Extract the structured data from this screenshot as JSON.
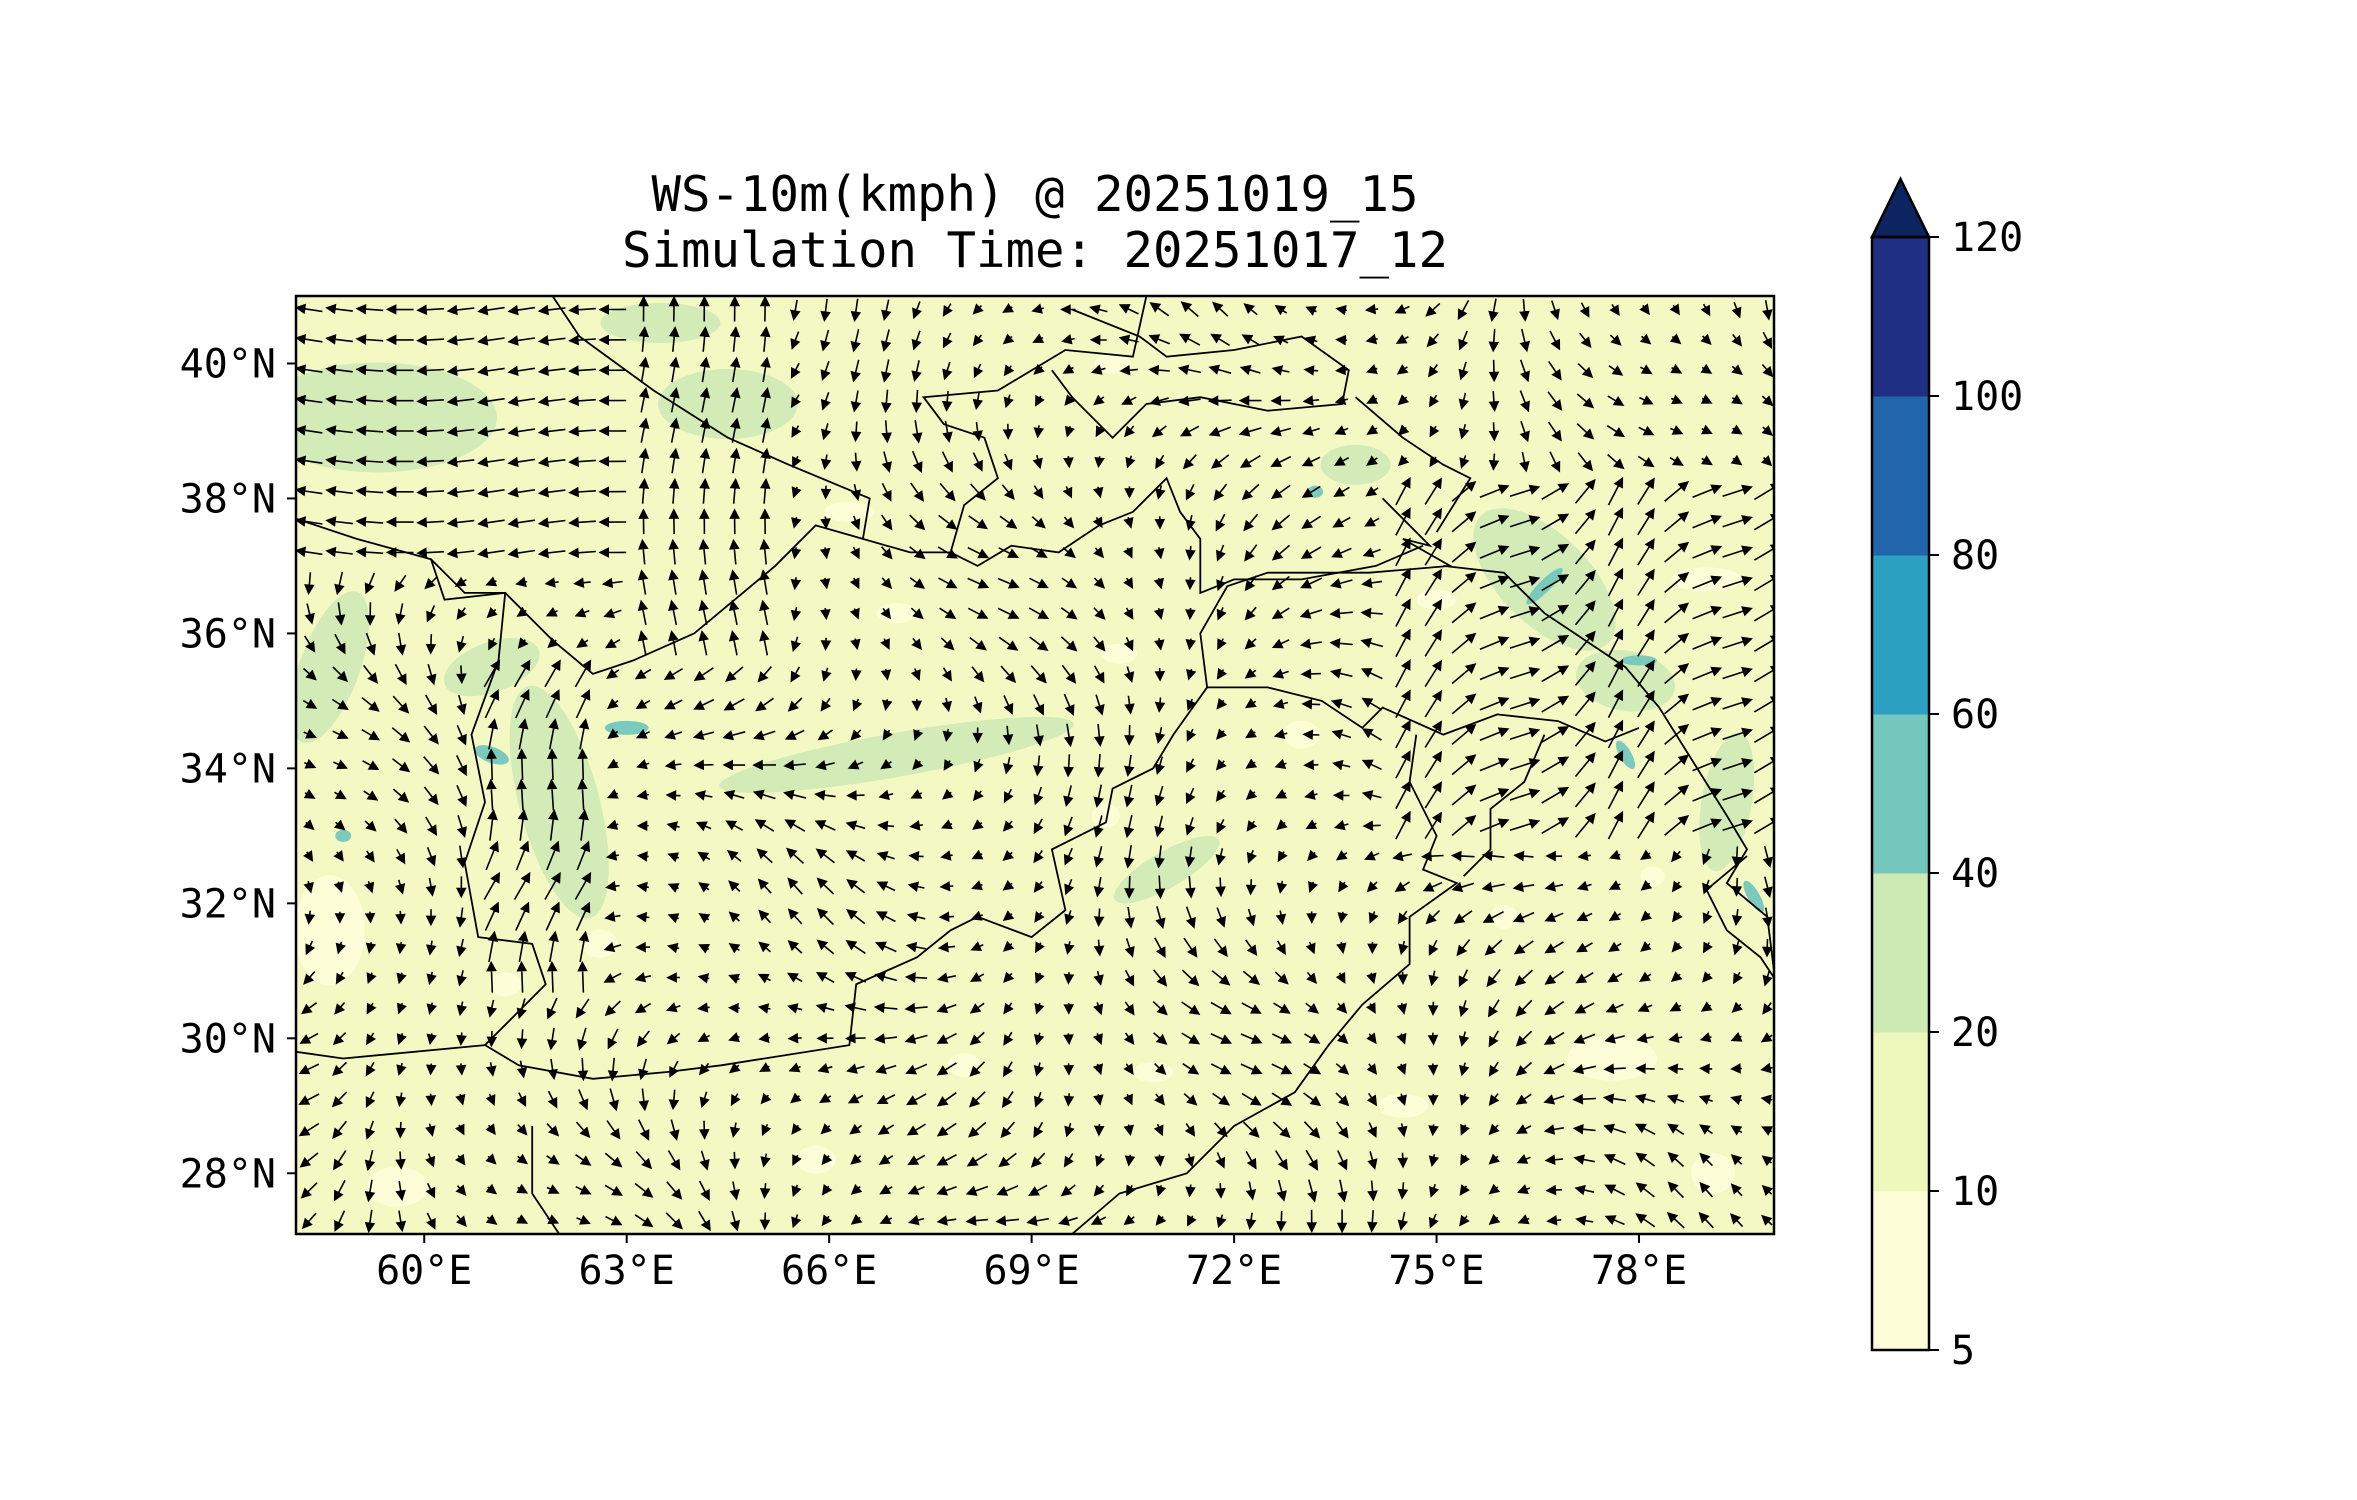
{
  "figure": {
    "title": "WS-10m(kmph) @ 20251019_15",
    "subtitle": "Simulation Time: 20251017_12"
  },
  "map": {
    "lon_range": [
      58.1,
      80.0
    ],
    "lat_range": [
      27.1,
      41.0
    ],
    "lon_ticks": [
      {
        "value": 60,
        "label": "60°E"
      },
      {
        "value": 63,
        "label": "63°E"
      },
      {
        "value": 66,
        "label": "66°E"
      },
      {
        "value": 69,
        "label": "69°E"
      },
      {
        "value": 72,
        "label": "72°E"
      },
      {
        "value": 75,
        "label": "75°E"
      },
      {
        "value": 78,
        "label": "78°E"
      }
    ],
    "lat_ticks": [
      {
        "value": 28,
        "label": "28°N"
      },
      {
        "value": 30,
        "label": "30°N"
      },
      {
        "value": 32,
        "label": "32°N"
      },
      {
        "value": 34,
        "label": "34°N"
      },
      {
        "value": 36,
        "label": "36°N"
      },
      {
        "value": 38,
        "label": "38°N"
      },
      {
        "value": 40,
        "label": "40°N"
      }
    ],
    "field": "10 m wind speed (kmph) with wind-direction arrows",
    "background_color": "#f4f9c4"
  },
  "colorbar": {
    "extend": "max",
    "extend_color": "#0c2460",
    "levels": [
      {
        "value": 5,
        "label": "5"
      },
      {
        "value": 10,
        "label": "10"
      },
      {
        "value": 20,
        "label": "20"
      },
      {
        "value": 40,
        "label": "40"
      },
      {
        "value": 60,
        "label": "60"
      },
      {
        "value": 80,
        "label": "80"
      },
      {
        "value": 100,
        "label": "100"
      },
      {
        "value": 120,
        "label": "120"
      }
    ],
    "colors": [
      "#fdfed8",
      "#eef8bc",
      "#cde9b4",
      "#74c7bd",
      "#2ca1c2",
      "#2165ab",
      "#1f2f83"
    ]
  }
}
